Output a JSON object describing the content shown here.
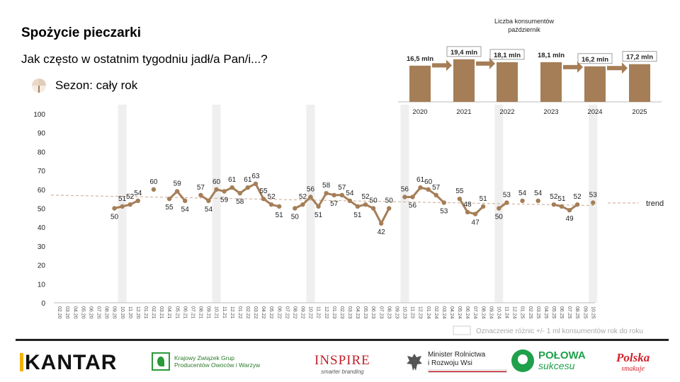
{
  "header": {
    "title": "Spożycie pieczarki",
    "question": "Jak często w ostatnim tygodniu jadł/a Pan/i...?",
    "season": "Sezon: cały rok"
  },
  "colors": {
    "series": "#a57e57",
    "trend": "#c9a78e",
    "band": "#efefef",
    "inset_bar": "#a57e57"
  },
  "chart_data": [
    {
      "type": "line",
      "ylim": [
        0,
        100
      ],
      "yticks": [
        0,
        10,
        20,
        30,
        40,
        50,
        60,
        70,
        80,
        90,
        100
      ],
      "grid": false,
      "categories": [
        "02.20",
        "03.20",
        "04.20",
        "05.20",
        "06.20",
        "07.20",
        "08.20",
        "09.20",
        "10.20",
        "11.20",
        "12.20",
        "01.21",
        "02.21",
        "03.21",
        "04.21",
        "05.21",
        "06.21",
        "07.21",
        "08.21",
        "09.21",
        "10.21",
        "11.21",
        "12.21",
        "01.22",
        "02.22",
        "03.22",
        "04.22",
        "05.22",
        "06.22",
        "07.22",
        "08.22",
        "09.22",
        "10.22",
        "11.22",
        "12.22",
        "01.23",
        "02.23",
        "03.23",
        "04.23",
        "05.23",
        "06.23",
        "07.23",
        "08.23",
        "09.23",
        "10.23",
        "11.23",
        "12.23",
        "01.24",
        "02.24",
        "03.24",
        "04.24",
        "05.24",
        "06.24",
        "07.24",
        "08.24",
        "09.24",
        "10.24",
        "11.24",
        "12.24",
        "01.25",
        "02.25",
        "03.25",
        "04.25",
        "05.25",
        "06.25",
        "07.25",
        "08.25",
        "09.25",
        "10.25"
      ],
      "values": [
        null,
        null,
        null,
        null,
        null,
        null,
        null,
        50,
        51,
        52,
        54,
        null,
        60,
        null,
        55,
        59,
        54,
        null,
        57,
        54,
        60,
        59,
        61,
        58,
        61,
        63,
        55,
        52,
        51,
        null,
        50,
        52,
        56,
        51,
        58,
        57,
        57,
        54,
        51,
        52,
        50,
        42,
        50,
        null,
        56,
        56,
        61,
        60,
        57,
        53,
        null,
        55,
        48,
        47,
        51,
        null,
        50,
        53,
        null,
        54,
        null,
        54,
        null,
        52,
        51,
        49,
        52,
        null,
        53
      ],
      "label_text": [
        "",
        "",
        "",
        "",
        "",
        "",
        "",
        "50",
        "51",
        "52",
        "54",
        "",
        "60",
        "",
        "55",
        "59",
        "54",
        "",
        "57",
        "54",
        "60",
        "59",
        "61",
        "58",
        "61",
        "63",
        "55",
        "52",
        "51",
        "",
        "50",
        "52",
        "56",
        "51",
        "58",
        "57",
        "57",
        "54",
        "51",
        "52",
        "50",
        "42",
        "50",
        "",
        "56",
        "56",
        "61",
        "60",
        "57",
        "53",
        "",
        "55",
        "48",
        "47",
        "51",
        "",
        "50",
        "53",
        "",
        "54",
        "",
        "54",
        "",
        "52",
        "51",
        "49",
        "52",
        "",
        "53"
      ],
      "highlighted_months": [
        "10.20",
        "10.21",
        "10.22",
        "10.23",
        "10.24",
        "10.25"
      ],
      "trend": {
        "name": "trend",
        "start": 57,
        "end": 51.5
      },
      "legend_note": "Oznaczenie różnic +/- 1 ml konsumentów rok do roku"
    },
    {
      "type": "bar",
      "title": "Liczba konsumentów\npaździernik",
      "categories": [
        "2020",
        "2021",
        "2022",
        "2023",
        "2024",
        "2025"
      ],
      "values": [
        16.5,
        19.4,
        18.1,
        18.1,
        16.2,
        17.2
      ],
      "labels": [
        "16,5 mln",
        "19,4 mln",
        "18,1 mln",
        "18,1 mln",
        "16,2 mln",
        "17,2 mln"
      ],
      "boxed": [
        false,
        true,
        true,
        false,
        true,
        true
      ],
      "arrows": [
        true,
        true,
        false,
        true,
        true
      ]
    }
  ],
  "logos": {
    "kantar": "KANTAR",
    "kzg": [
      "Krajowy Związek Grup",
      "Producentów Owoców i Warzyw"
    ],
    "inspire": [
      "INSPIRE",
      "smarter branding"
    ],
    "minister": [
      "Minister Rolnictwa",
      "i Rozwoju Wsi"
    ],
    "polowa": [
      "POŁOWA",
      "sukcesu"
    ],
    "polska": [
      "Polska",
      "smakuje"
    ]
  }
}
